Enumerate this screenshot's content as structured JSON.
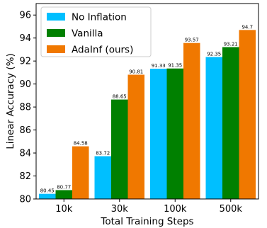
{
  "chart_data": {
    "type": "bar",
    "xlabel": "Total Training Steps",
    "ylabel": "Linear Accuracy (%)",
    "ylim": [
      80,
      97
    ],
    "yticks": [
      "80",
      "82",
      "84",
      "86",
      "88",
      "90",
      "92",
      "94",
      "96"
    ],
    "categories": [
      "10k",
      "30k",
      "100k",
      "500k"
    ],
    "grid": false,
    "legend_position": "top-left",
    "series": [
      {
        "name": "No Inflation",
        "color": "#00bfff",
        "values": [
          80.45,
          83.72,
          91.33,
          92.35
        ],
        "labels": [
          "80.45",
          "83.72",
          "91.33",
          "92.35"
        ]
      },
      {
        "name": "Vanilla",
        "color": "#008000",
        "values": [
          80.77,
          88.65,
          91.35,
          93.21
        ],
        "labels": [
          "80.77",
          "88.65",
          "91.35",
          "93.21"
        ]
      },
      {
        "name": "AdaInf (ours)",
        "color": "#f07800",
        "values": [
          84.58,
          90.81,
          93.57,
          94.7
        ],
        "labels": [
          "84.58",
          "90.81",
          "93.57",
          "94.7"
        ]
      }
    ]
  }
}
